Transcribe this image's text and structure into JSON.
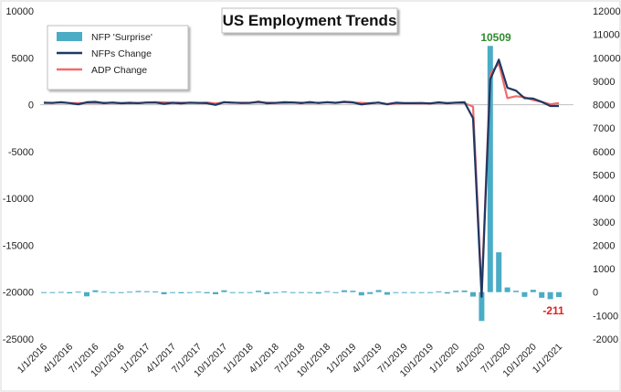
{
  "chart_data": {
    "type": "bar",
    "title": "US Employment Trends",
    "x": [
      "1/1/2016",
      "2/1/2016",
      "3/1/2016",
      "4/1/2016",
      "5/1/2016",
      "6/1/2016",
      "7/1/2016",
      "8/1/2016",
      "9/1/2016",
      "10/1/2016",
      "11/1/2016",
      "12/1/2016",
      "1/1/2017",
      "2/1/2017",
      "3/1/2017",
      "4/1/2017",
      "5/1/2017",
      "6/1/2017",
      "7/1/2017",
      "8/1/2017",
      "9/1/2017",
      "10/1/2017",
      "11/1/2017",
      "12/1/2017",
      "1/1/2018",
      "2/1/2018",
      "3/1/2018",
      "4/1/2018",
      "5/1/2018",
      "6/1/2018",
      "7/1/2018",
      "8/1/2018",
      "9/1/2018",
      "10/1/2018",
      "11/1/2018",
      "12/1/2018",
      "1/1/2019",
      "2/1/2019",
      "3/1/2019",
      "4/1/2019",
      "5/1/2019",
      "6/1/2019",
      "7/1/2019",
      "8/1/2019",
      "9/1/2019",
      "10/1/2019",
      "11/1/2019",
      "12/1/2019",
      "1/1/2020",
      "2/1/2020",
      "3/1/2020",
      "4/1/2020",
      "5/1/2020",
      "6/1/2020",
      "7/1/2020",
      "8/1/2020",
      "9/1/2020",
      "10/1/2020",
      "11/1/2020",
      "12/1/2020",
      "1/1/2021"
    ],
    "x_tick_labels": [
      "1/1/2016",
      "4/1/2016",
      "7/1/2016",
      "10/1/2016",
      "1/1/2017",
      "4/1/2017",
      "7/1/2017",
      "10/1/2017",
      "1/1/2018",
      "4/1/2018",
      "7/1/2018",
      "10/1/2018",
      "1/1/2019",
      "4/1/2019",
      "7/1/2019",
      "10/1/2019",
      "1/1/2020",
      "4/1/2020",
      "7/1/2020",
      "10/1/2020",
      "1/1/2021"
    ],
    "left_axis": {
      "ylim": [
        -25000,
        10000
      ],
      "ticks": [
        10000,
        5000,
        0,
        -5000,
        -10000,
        -15000,
        -20000,
        -25000
      ]
    },
    "right_axis": {
      "ylim": [
        -2000,
        12000
      ],
      "ticks": [
        12000,
        11000,
        10000,
        9000,
        8000,
        7000,
        6000,
        5000,
        4000,
        3000,
        2000,
        1000,
        0,
        -1000,
        -2000
      ]
    },
    "series": [
      {
        "name": "NFP 'Surprise'",
        "type": "bar",
        "axis": "right",
        "color": "#4bacc6",
        "values": [
          -30,
          -20,
          10,
          -50,
          20,
          -180,
          80,
          20,
          -40,
          -20,
          20,
          50,
          40,
          30,
          -90,
          -30,
          -50,
          -30,
          20,
          -50,
          -90,
          80,
          -20,
          -40,
          -20,
          60,
          -80,
          -30,
          30,
          -10,
          -40,
          -20,
          -60,
          40,
          -40,
          80,
          60,
          -140,
          -80,
          90,
          -110,
          -20,
          -40,
          -40,
          -30,
          -30,
          30,
          -60,
          60,
          70,
          -190,
          -1230,
          10509,
          1700,
          200,
          60,
          -200,
          100,
          -240,
          -300,
          -211
        ]
      },
      {
        "name": "NFPs Change",
        "type": "line",
        "axis": "left",
        "color": "#1f3864",
        "values": [
          200,
          180,
          260,
          170,
          40,
          260,
          300,
          160,
          230,
          150,
          190,
          160,
          220,
          230,
          90,
          200,
          140,
          220,
          190,
          160,
          -20,
          270,
          220,
          170,
          180,
          320,
          150,
          180,
          260,
          240,
          160,
          280,
          170,
          270,
          200,
          310,
          250,
          30,
          150,
          220,
          70,
          210,
          160,
          160,
          180,
          130,
          250,
          150,
          220,
          270,
          -1450,
          -20500,
          2700,
          4800,
          1800,
          1500,
          700,
          650,
          300,
          -140,
          -140
        ]
      },
      {
        "name": "ADP Change",
        "type": "line",
        "axis": "left",
        "color": "#f26b6b",
        "values": [
          220,
          200,
          230,
          180,
          160,
          180,
          190,
          200,
          180,
          170,
          210,
          170,
          240,
          260,
          250,
          200,
          210,
          190,
          180,
          230,
          130,
          230,
          200,
          220,
          220,
          240,
          220,
          200,
          190,
          210,
          220,
          170,
          220,
          230,
          180,
          270,
          210,
          190,
          140,
          230,
          30,
          130,
          150,
          150,
          140,
          140,
          200,
          180,
          200,
          150,
          -200,
          -20000,
          3300,
          4400,
          700,
          900,
          800,
          500,
          300,
          50,
          170
        ]
      }
    ],
    "annotations": [
      {
        "text": "10509",
        "color": "#2e8b2e"
      },
      {
        "text": "-211",
        "color": "#e02020"
      }
    ],
    "legend": {
      "placement": "top-left",
      "entries": [
        "NFP 'Surprise'",
        "NFPs Change",
        "ADP Change"
      ]
    },
    "grid": false
  }
}
